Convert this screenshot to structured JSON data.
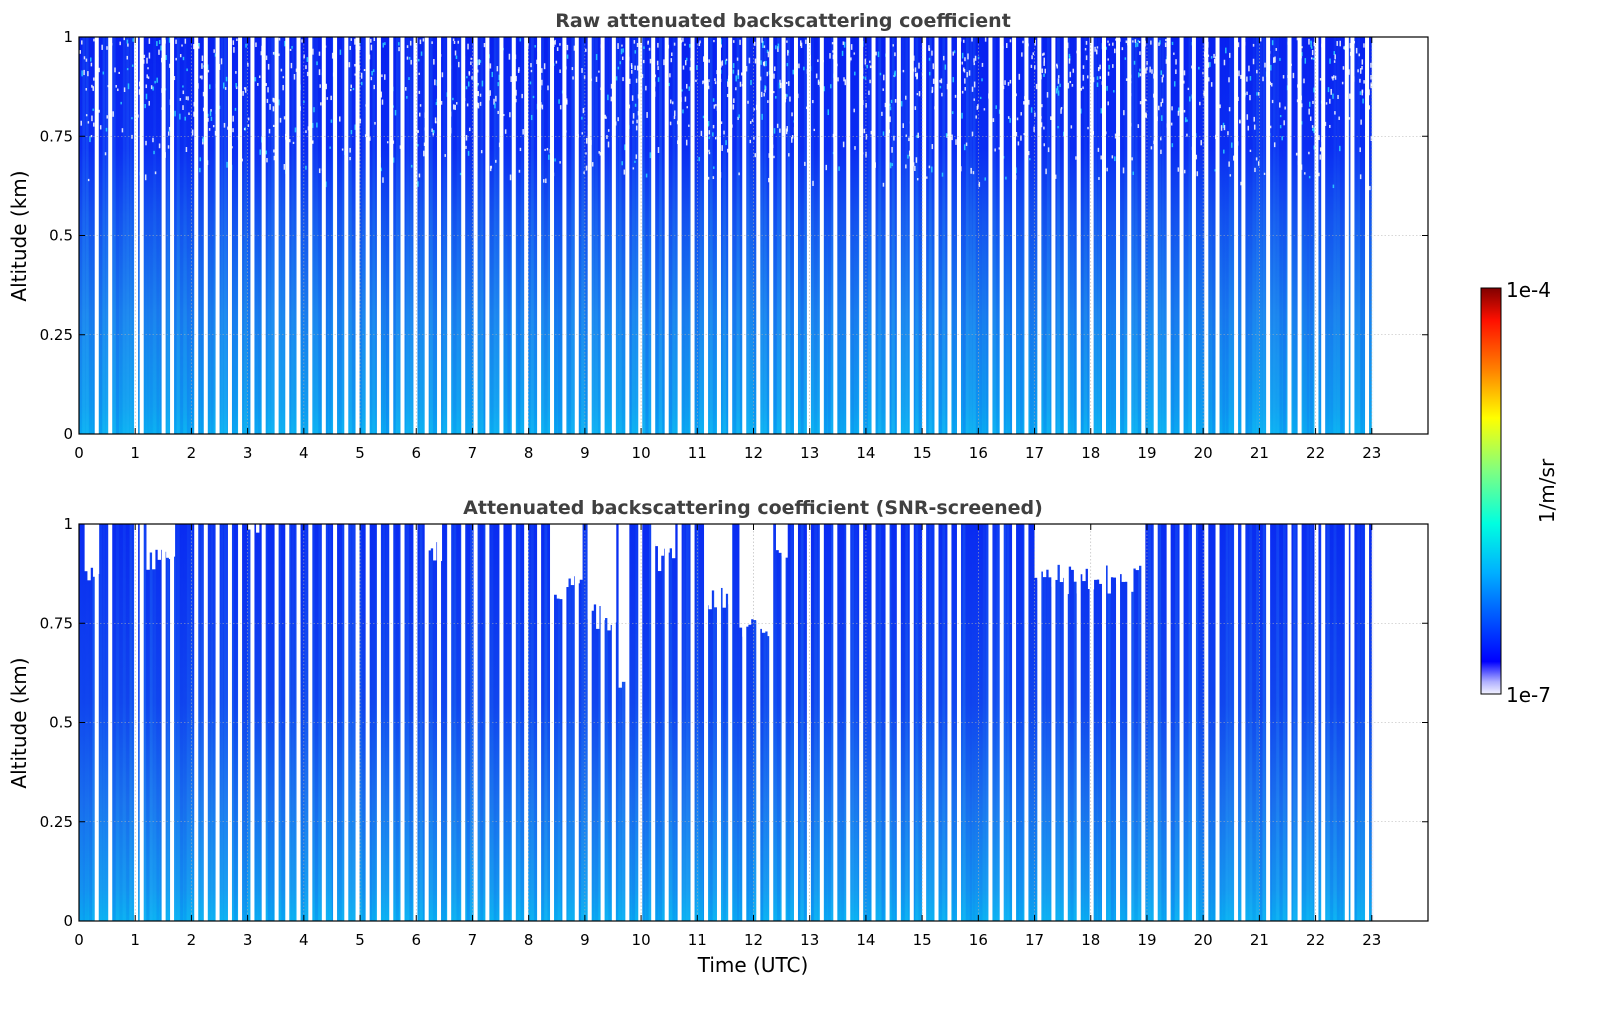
{
  "chart_data": [
    {
      "type": "heatmap",
      "title": "Raw attenuated backscattering coefficient",
      "xlabel": "",
      "ylabel": "Altitude (km)",
      "xlim": [
        0,
        24
      ],
      "ylim": [
        0,
        1
      ],
      "x_ticks": [
        "0",
        "1",
        "2",
        "3",
        "4",
        "5",
        "6",
        "7",
        "8",
        "9",
        "10",
        "11",
        "12",
        "13",
        "14",
        "15",
        "16",
        "17",
        "18",
        "19",
        "20",
        "21",
        "22",
        "23"
      ],
      "y_ticks": [
        "0",
        "0.25",
        "0.5",
        "0.75",
        "1"
      ],
      "grid": true,
      "data_extent_hours": [
        0,
        23
      ],
      "screened": false
    },
    {
      "type": "heatmap",
      "title": "Attenuated backscattering coefficient (SNR-screened)",
      "xlabel": "Time (UTC)",
      "ylabel": "Altitude (km)",
      "xlim": [
        0,
        24
      ],
      "ylim": [
        0,
        1
      ],
      "x_ticks": [
        "0",
        "1",
        "2",
        "3",
        "4",
        "5",
        "6",
        "7",
        "8",
        "9",
        "10",
        "11",
        "12",
        "13",
        "14",
        "15",
        "16",
        "17",
        "18",
        "19",
        "20",
        "21",
        "22",
        "23"
      ],
      "y_ticks": [
        "0",
        "0.25",
        "0.5",
        "0.75",
        "1"
      ],
      "grid": true,
      "data_extent_hours": [
        0,
        23
      ],
      "screened": true
    }
  ],
  "colorbar": {
    "label": "1/m/sr",
    "max_label": "1e-4",
    "min_label": "1e-7",
    "colormap": "jet",
    "scale": "log"
  },
  "colors": {
    "near_surface": "#0aa6ee",
    "mid": "#1565f2",
    "upper": "#0b2bf5",
    "deep": "#0616e6",
    "gap": "#ffffff",
    "title": "#404040",
    "grid": "#b0b0b0"
  }
}
